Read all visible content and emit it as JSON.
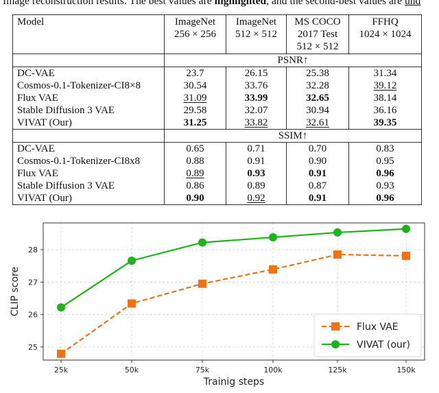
{
  "caption": {
    "prefix": "Image reconstruction results. The best values are ",
    "bold_word": "highlighted",
    "middle": ", and the second-best values are ",
    "underlined_fragment": "und"
  },
  "table": {
    "headers": {
      "model": "Model",
      "col1_line1": "ImageNet",
      "col1_line2": "256 × 256",
      "col2_line1": "ImageNet",
      "col2_line2": "512 × 512",
      "col3_line1": "MS COCO",
      "col3_line2": "2017 Test",
      "col3_line3": "512 × 512",
      "col4_line1": "FFHQ",
      "col4_line2": "1024 × 1024"
    },
    "sections": [
      {
        "metric": "PSNR↑",
        "rows": [
          {
            "model": "DC-VAE",
            "v": [
              "23.7",
              "26.15",
              "25.38",
              "31.34"
            ],
            "style": [
              "",
              "",
              "",
              ""
            ]
          },
          {
            "model": "Cosmos-0.1-Tokenizer-CI8×8",
            "v": [
              "30.54",
              "33.76",
              "32.28",
              "39.12"
            ],
            "style": [
              "",
              "",
              "",
              "under"
            ]
          },
          {
            "model": "Flux VAE",
            "v": [
              "31.09",
              "33.99",
              "32.65",
              "38.14"
            ],
            "style": [
              "under",
              "bold",
              "bold",
              ""
            ]
          },
          {
            "model": "Stable Diffusion 3 VAE",
            "v": [
              "29.58",
              "32.07",
              "30.94",
              "36.16"
            ],
            "style": [
              "",
              "",
              "",
              ""
            ]
          },
          {
            "model": "VIVAT (Our)",
            "v": [
              "31.25",
              "33.82",
              "32.61",
              "39.35"
            ],
            "style": [
              "bold",
              "under",
              "under",
              "bold"
            ]
          }
        ]
      },
      {
        "metric": "SSIM↑",
        "rows": [
          {
            "model": "DC-VAE",
            "v": [
              "0.65",
              "0.71",
              "0.70",
              "0.83"
            ],
            "style": [
              "",
              "",
              "",
              ""
            ]
          },
          {
            "model": "Cosmos-0.1-Tokenizer-CI8x8",
            "v": [
              "0.88",
              "0.91",
              "0.90",
              "0.95"
            ],
            "style": [
              "",
              "",
              "",
              ""
            ]
          },
          {
            "model": "Flux VAE",
            "v": [
              "0.89",
              "0.93",
              "0.91",
              "0.96"
            ],
            "style": [
              "under",
              "bold",
              "bold",
              "bold"
            ]
          },
          {
            "model": "Stable Diffusion 3 VAE",
            "v": [
              "0.86",
              "0.89",
              "0.87",
              "0.93"
            ],
            "style": [
              "",
              "",
              "",
              ""
            ]
          },
          {
            "model": "VIVAT (Our)",
            "v": [
              "0.90",
              "0.92",
              "0.91",
              "0.96"
            ],
            "style": [
              "bold",
              "under",
              "bold",
              "bold"
            ]
          }
        ]
      }
    ]
  },
  "chart_data": {
    "type": "line",
    "title": "",
    "xlabel": "Trainig steps",
    "ylabel": "CLIP score",
    "categories": [
      "25k",
      "50k",
      "75k",
      "100k",
      "125k",
      "150k"
    ],
    "yticks": [
      "25",
      "26",
      "27",
      "28"
    ],
    "ylim": [
      24.6,
      28.85
    ],
    "grid": true,
    "legend_position": "lower right",
    "series": [
      {
        "name": "Flux VAE",
        "color": "#f07212",
        "marker": "square",
        "linestyle": "dashed",
        "values": [
          24.79,
          26.34,
          26.95,
          27.39,
          27.85,
          27.81
        ]
      },
      {
        "name": "VIVAT (our)",
        "color": "#19b519",
        "marker": "circle",
        "linestyle": "solid",
        "values": [
          26.22,
          27.66,
          28.22,
          28.38,
          28.53,
          28.64
        ]
      }
    ]
  }
}
